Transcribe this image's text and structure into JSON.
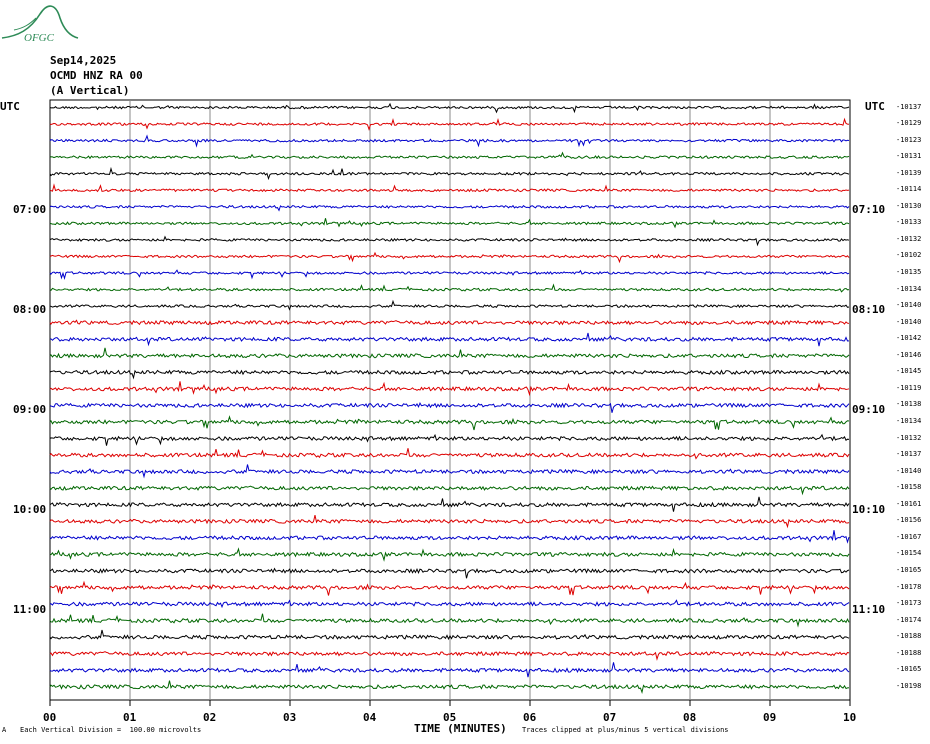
{
  "header": {
    "logo_text": "OFGC",
    "date": "Sep14,2025",
    "station": "OCMD HNZ RA 00",
    "component": "(A Vertical)",
    "utc_left": "UTC",
    "utc_right": "UTC"
  },
  "footer": {
    "scale_mark": "A",
    "scale_note": "Each Vertical Division =  100.00 microvolts",
    "clip_note": "Traces clipped at plus/minus 5 vertical divisions"
  },
  "colors": {
    "cycle": [
      "#000000",
      "#dd0000",
      "#0000cc",
      "#006600"
    ],
    "grid": "#888888",
    "logo": "#2e8b57"
  },
  "chart_data": {
    "type": "line",
    "title": "",
    "xlabel": "TIME (MINUTES)",
    "ylabel": "",
    "xlim": [
      0,
      10
    ],
    "grid": true,
    "x_ticks": [
      "00",
      "01",
      "02",
      "03",
      "04",
      "05",
      "06",
      "07",
      "08",
      "09",
      "10"
    ],
    "left_time_labels": [
      "07:00",
      "08:00",
      "09:00",
      "10:00",
      "11:00"
    ],
    "right_time_labels": [
      "07:10",
      "08:10",
      "09:10",
      "10:10",
      "11:10"
    ],
    "trace_offsets": [
      -10137,
      -10129,
      -10123,
      -10131,
      -10139,
      -10114,
      -10130,
      -10133,
      -10132,
      -10102,
      -10135,
      -10134,
      -10140,
      -10140,
      -10142,
      -10146,
      -10145,
      -10119,
      -10138,
      -10134,
      -10132,
      -10137,
      -10140,
      -10158,
      -10161,
      -10156,
      -10167,
      -10154,
      -10165,
      -10178,
      -10173,
      -10174,
      -10188,
      -10188,
      -10165,
      -10198
    ]
  }
}
